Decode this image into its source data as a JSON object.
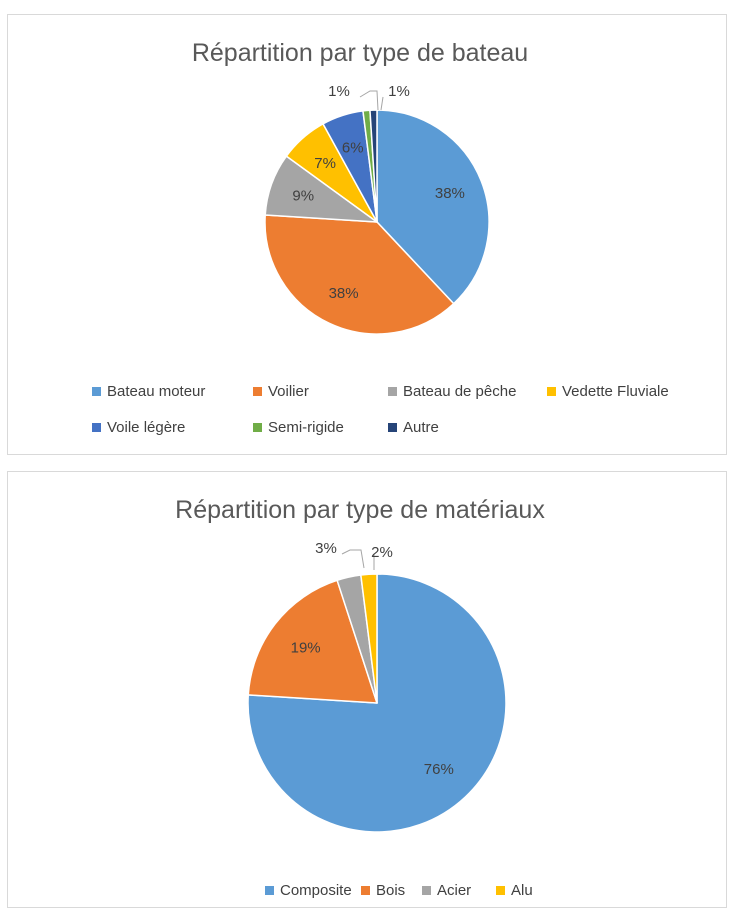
{
  "chart_data": [
    {
      "type": "pie",
      "title": "Répartition par type de bateau",
      "start_angle_deg": 0,
      "legend_position": "bottom",
      "slices": [
        {
          "label": "Bateau moteur",
          "value": 38,
          "display": "38%",
          "color": "#5B9BD5"
        },
        {
          "label": "Voilier",
          "value": 38,
          "display": "38%",
          "color": "#ED7D31"
        },
        {
          "label": "Bateau de pêche",
          "value": 9,
          "display": "9%",
          "color": "#A5A5A5"
        },
        {
          "label": "Vedette Fluviale",
          "value": 7,
          "display": "7%",
          "color": "#FFC000"
        },
        {
          "label": "Voile légère",
          "value": 6,
          "display": "6%",
          "color": "#4472C4"
        },
        {
          "label": "Semi-rigide",
          "value": 1,
          "display": "1%",
          "color": "#70AD47"
        },
        {
          "label": "Autre",
          "value": 1,
          "display": "1%",
          "color": "#264478"
        }
      ]
    },
    {
      "type": "pie",
      "title": "Répartition par type de matériaux",
      "start_angle_deg": 0,
      "legend_position": "bottom",
      "slices": [
        {
          "label": "Composite",
          "value": 76,
          "display": "76%",
          "color": "#5B9BD5"
        },
        {
          "label": "Bois",
          "value": 19,
          "display": "19%",
          "color": "#ED7D31"
        },
        {
          "label": "Acier",
          "value": 3,
          "display": "3%",
          "color": "#A5A5A5"
        },
        {
          "label": "Alu",
          "value": 2,
          "display": "2%",
          "color": "#FFC000"
        }
      ]
    }
  ]
}
